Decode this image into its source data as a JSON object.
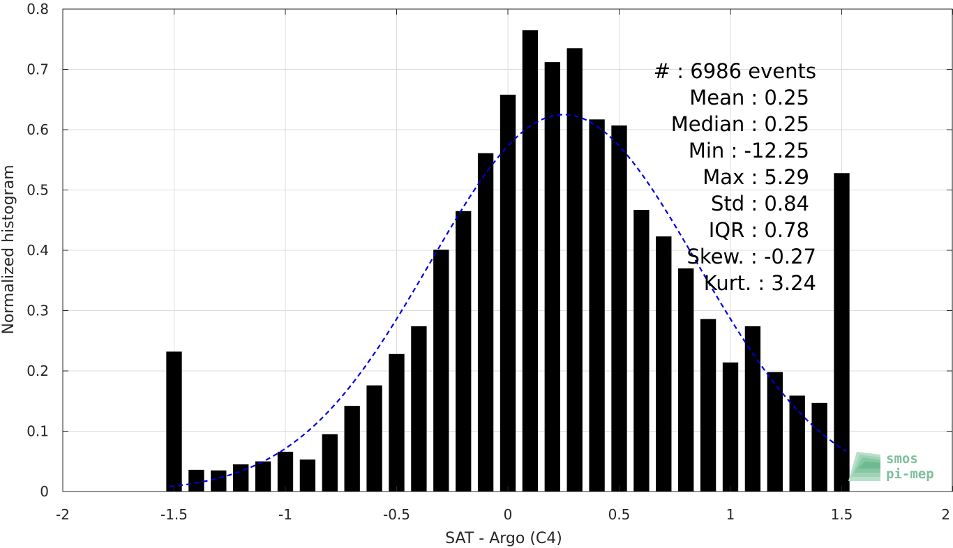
{
  "chart_data": {
    "type": "bar",
    "xlabel": "SAT - Argo (C4)",
    "ylabel": "Normalized histogram",
    "xlim": [
      -2,
      2
    ],
    "ylim": [
      0,
      0.8
    ],
    "xticks": [
      -2,
      -1.5,
      -1,
      -0.5,
      0,
      0.5,
      1,
      1.5,
      2
    ],
    "xtick_labels": [
      "-2",
      "-1.5",
      "-1",
      "-0.5",
      "0",
      "0.5",
      "1",
      "1.5",
      "2"
    ],
    "yticks": [
      0,
      0.1,
      0.2,
      0.3,
      0.4,
      0.5,
      0.6,
      0.7,
      0.8
    ],
    "ytick_labels": [
      "0",
      "0.1",
      "0.2",
      "0.3",
      "0.4",
      "0.5",
      "0.6",
      "0.7",
      "0.8"
    ],
    "grid": true,
    "bar_color": "#000000",
    "bar_width": 0.07,
    "x": [
      -1.5,
      -1.4,
      -1.3,
      -1.2,
      -1.1,
      -1.0,
      -0.9,
      -0.8,
      -0.7,
      -0.6,
      -0.5,
      -0.4,
      -0.3,
      -0.2,
      -0.1,
      0.0,
      0.1,
      0.2,
      0.3,
      0.4,
      0.5,
      0.6,
      0.7,
      0.8,
      0.9,
      1.0,
      1.1,
      1.2,
      1.3,
      1.4,
      1.5
    ],
    "values": [
      0.232,
      0.036,
      0.035,
      0.045,
      0.05,
      0.066,
      0.053,
      0.095,
      0.142,
      0.176,
      0.228,
      0.274,
      0.401,
      0.465,
      0.561,
      0.658,
      0.765,
      0.712,
      0.735,
      0.617,
      0.607,
      0.467,
      0.423,
      0.37,
      0.286,
      0.214,
      0.274,
      0.198,
      0.159,
      0.147,
      0.528
    ],
    "fit": {
      "type": "gaussian",
      "color": "#0000dd",
      "style": "dashed",
      "mean": 0.25,
      "std": 0.6,
      "amplitude": 0.625,
      "xrange": [
        -1.52,
        1.52
      ]
    },
    "stats": [
      "#  : 6986 events",
      "Mean : 0.25",
      "Median : 0.25",
      "Min : -12.25",
      "Max : 5.29",
      "Std : 0.84",
      "IQR : 0.78",
      "Skew. : -0.27",
      "Kurt. : 3.24"
    ]
  },
  "logo": {
    "line1": "smos",
    "line2": "pi-mep",
    "color": "#7fbf9c"
  }
}
